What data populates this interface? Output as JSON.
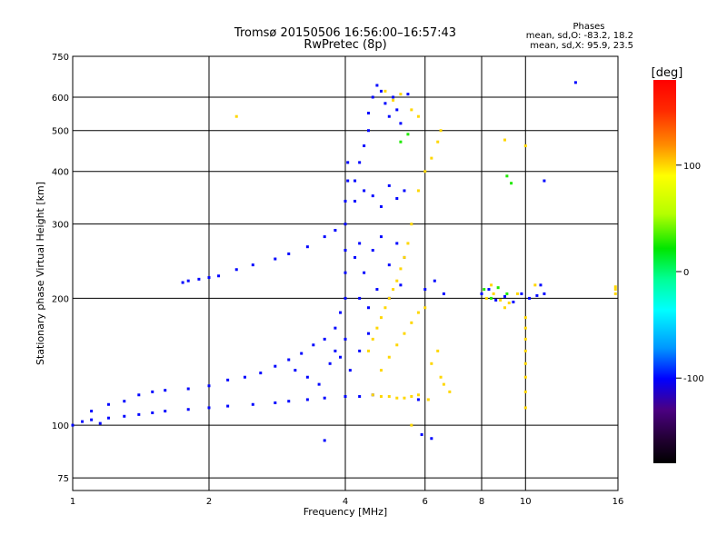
{
  "chart_data": {
    "type": "scatter",
    "title": "Tromsø 20150506 16:56:00–16:57:43",
    "subtitle": "RwPretec (8p)",
    "stats": {
      "heading": "Phases",
      "line_o": "mean, sd,O: -83.2, 18.2",
      "line_x": "mean, sd,X:  95.9, 23.5"
    },
    "xlabel": "Frequency [MHz]",
    "ylabel": "Stationary phase Virtual Height [km]",
    "x_scale": "log",
    "y_scale": "log",
    "xlim": [
      1,
      16
    ],
    "ylim": [
      70,
      750
    ],
    "x_ticks": [
      1,
      2,
      4,
      6,
      8,
      10,
      16
    ],
    "x_tick_labels": [
      "1",
      "2",
      "4",
      "6",
      "8",
      "10",
      "16"
    ],
    "y_ticks": [
      75,
      100,
      200,
      300,
      400,
      500,
      600,
      750
    ],
    "y_tick_labels": [
      "75",
      "100",
      "200",
      "300",
      "400",
      "500",
      "600",
      "750"
    ],
    "grid": true,
    "colorbar": {
      "label": "[deg]",
      "range": [
        -180,
        180
      ],
      "ticks": [
        100,
        0,
        -100
      ],
      "tick_labels": [
        "100",
        "0",
        "-100"
      ]
    },
    "series": [
      {
        "mode": "O",
        "phase_deg": -100,
        "points": [
          [
            1.0,
            100
          ],
          [
            1.05,
            102
          ],
          [
            1.1,
            103
          ],
          [
            1.15,
            101
          ],
          [
            1.2,
            104
          ],
          [
            1.3,
            105
          ],
          [
            1.4,
            106
          ],
          [
            1.5,
            107
          ],
          [
            1.6,
            108
          ],
          [
            1.8,
            109
          ],
          [
            2.0,
            110
          ],
          [
            2.2,
            111
          ],
          [
            2.5,
            112
          ],
          [
            2.8,
            113
          ],
          [
            3.0,
            114
          ],
          [
            3.3,
            115
          ],
          [
            3.6,
            116
          ],
          [
            4.0,
            117
          ],
          [
            4.3,
            117
          ],
          [
            4.6,
            118
          ],
          [
            1.1,
            108
          ],
          [
            1.2,
            112
          ],
          [
            1.3,
            114
          ],
          [
            1.4,
            118
          ],
          [
            1.5,
            120
          ],
          [
            1.6,
            121
          ],
          [
            1.8,
            122
          ],
          [
            2.0,
            124
          ],
          [
            2.2,
            128
          ],
          [
            2.4,
            130
          ],
          [
            2.6,
            133
          ],
          [
            2.8,
            138
          ],
          [
            3.0,
            143
          ],
          [
            3.2,
            148
          ],
          [
            3.4,
            155
          ],
          [
            3.6,
            160
          ],
          [
            3.8,
            170
          ],
          [
            3.9,
            185
          ],
          [
            1.75,
            218
          ],
          [
            1.8,
            220
          ],
          [
            1.9,
            222
          ],
          [
            2.0,
            224
          ],
          [
            2.1,
            226
          ],
          [
            2.3,
            234
          ],
          [
            2.5,
            240
          ],
          [
            2.8,
            248
          ],
          [
            3.0,
            255
          ],
          [
            3.3,
            265
          ],
          [
            3.6,
            280
          ],
          [
            3.8,
            290
          ],
          [
            4.0,
            200
          ],
          [
            4.0,
            230
          ],
          [
            4.0,
            260
          ],
          [
            4.0,
            300
          ],
          [
            4.0,
            340
          ],
          [
            4.05,
            380
          ],
          [
            4.05,
            420
          ],
          [
            4.2,
            380
          ],
          [
            4.3,
            420
          ],
          [
            4.4,
            460
          ],
          [
            4.5,
            500
          ],
          [
            4.5,
            550
          ],
          [
            4.6,
            600
          ],
          [
            4.7,
            640
          ],
          [
            4.8,
            620
          ],
          [
            4.9,
            580
          ],
          [
            5.0,
            540
          ],
          [
            5.1,
            600
          ],
          [
            5.2,
            560
          ],
          [
            5.3,
            520
          ],
          [
            5.5,
            610
          ],
          [
            4.2,
            250
          ],
          [
            4.3,
            270
          ],
          [
            4.4,
            230
          ],
          [
            4.6,
            260
          ],
          [
            4.8,
            280
          ],
          [
            5.0,
            240
          ],
          [
            5.2,
            270
          ],
          [
            5.4,
            250
          ],
          [
            4.3,
            200
          ],
          [
            4.5,
            190
          ],
          [
            4.7,
            210
          ],
          [
            5.0,
            200
          ],
          [
            5.3,
            215
          ],
          [
            3.7,
            140
          ],
          [
            3.8,
            150
          ],
          [
            3.9,
            145
          ],
          [
            4.0,
            160
          ],
          [
            4.1,
            135
          ],
          [
            4.3,
            150
          ],
          [
            4.5,
            165
          ],
          [
            3.5,
            125
          ],
          [
            3.3,
            130
          ],
          [
            3.1,
            135
          ],
          [
            4.2,
            340
          ],
          [
            4.4,
            360
          ],
          [
            4.6,
            350
          ],
          [
            4.8,
            330
          ],
          [
            5.0,
            370
          ],
          [
            5.2,
            345
          ],
          [
            5.4,
            360
          ],
          [
            8.0,
            205
          ],
          [
            8.3,
            210
          ],
          [
            8.6,
            198
          ],
          [
            9.0,
            202
          ],
          [
            9.4,
            196
          ],
          [
            9.8,
            205
          ],
          [
            10.2,
            200
          ],
          [
            10.6,
            203
          ],
          [
            11.0,
            205
          ],
          [
            10.8,
            215
          ],
          [
            11.0,
            380
          ],
          [
            12.9,
            650
          ],
          [
            5.8,
            115
          ],
          [
            6.0,
            210
          ],
          [
            6.3,
            220
          ],
          [
            6.6,
            205
          ],
          [
            3.6,
            92
          ],
          [
            5.9,
            95
          ],
          [
            6.2,
            93
          ]
        ]
      },
      {
        "mode": "X",
        "phase_deg": 100,
        "points": [
          [
            4.6,
            118
          ],
          [
            4.8,
            117
          ],
          [
            5.0,
            117
          ],
          [
            5.2,
            116
          ],
          [
            5.4,
            116
          ],
          [
            5.6,
            117
          ],
          [
            5.8,
            118
          ],
          [
            4.5,
            150
          ],
          [
            4.6,
            160
          ],
          [
            4.7,
            170
          ],
          [
            4.8,
            180
          ],
          [
            4.9,
            190
          ],
          [
            5.0,
            200
          ],
          [
            5.1,
            210
          ],
          [
            5.2,
            220
          ],
          [
            5.3,
            235
          ],
          [
            5.4,
            250
          ],
          [
            5.5,
            270
          ],
          [
            5.6,
            300
          ],
          [
            5.8,
            360
          ],
          [
            6.0,
            400
          ],
          [
            6.2,
            430
          ],
          [
            6.4,
            470
          ],
          [
            6.5,
            500
          ],
          [
            4.8,
            135
          ],
          [
            5.0,
            145
          ],
          [
            5.2,
            155
          ],
          [
            5.4,
            165
          ],
          [
            5.6,
            175
          ],
          [
            5.8,
            185
          ],
          [
            6.0,
            190
          ],
          [
            6.2,
            140
          ],
          [
            6.4,
            150
          ],
          [
            6.5,
            130
          ],
          [
            6.6,
            125
          ],
          [
            6.8,
            120
          ],
          [
            4.9,
            620
          ],
          [
            5.1,
            590
          ],
          [
            5.3,
            610
          ],
          [
            5.6,
            560
          ],
          [
            5.8,
            540
          ],
          [
            2.3,
            540
          ],
          [
            8.2,
            200
          ],
          [
            8.5,
            205
          ],
          [
            8.8,
            198
          ],
          [
            9.2,
            195
          ],
          [
            8.4,
            215
          ],
          [
            9.0,
            190
          ],
          [
            9.6,
            205
          ],
          [
            10.5,
            215
          ],
          [
            10.0,
            180
          ],
          [
            10.0,
            170
          ],
          [
            10.0,
            160
          ],
          [
            10.0,
            150
          ],
          [
            10.0,
            140
          ],
          [
            10.0,
            130
          ],
          [
            10.0,
            120
          ],
          [
            10.0,
            110
          ],
          [
            10.0,
            460
          ],
          [
            9.0,
            475
          ],
          [
            6.1,
            115
          ],
          [
            5.6,
            100
          ],
          [
            15.8,
            205
          ],
          [
            15.8,
            210
          ],
          [
            15.8,
            213
          ]
        ]
      },
      {
        "mode": "X",
        "phase_deg": 30,
        "points": [
          [
            8.1,
            210
          ],
          [
            8.4,
            200
          ],
          [
            8.7,
            212
          ],
          [
            9.1,
            205
          ],
          [
            9.3,
            375
          ],
          [
            9.1,
            390
          ],
          [
            5.3,
            470
          ],
          [
            5.5,
            490
          ]
        ]
      }
    ]
  }
}
